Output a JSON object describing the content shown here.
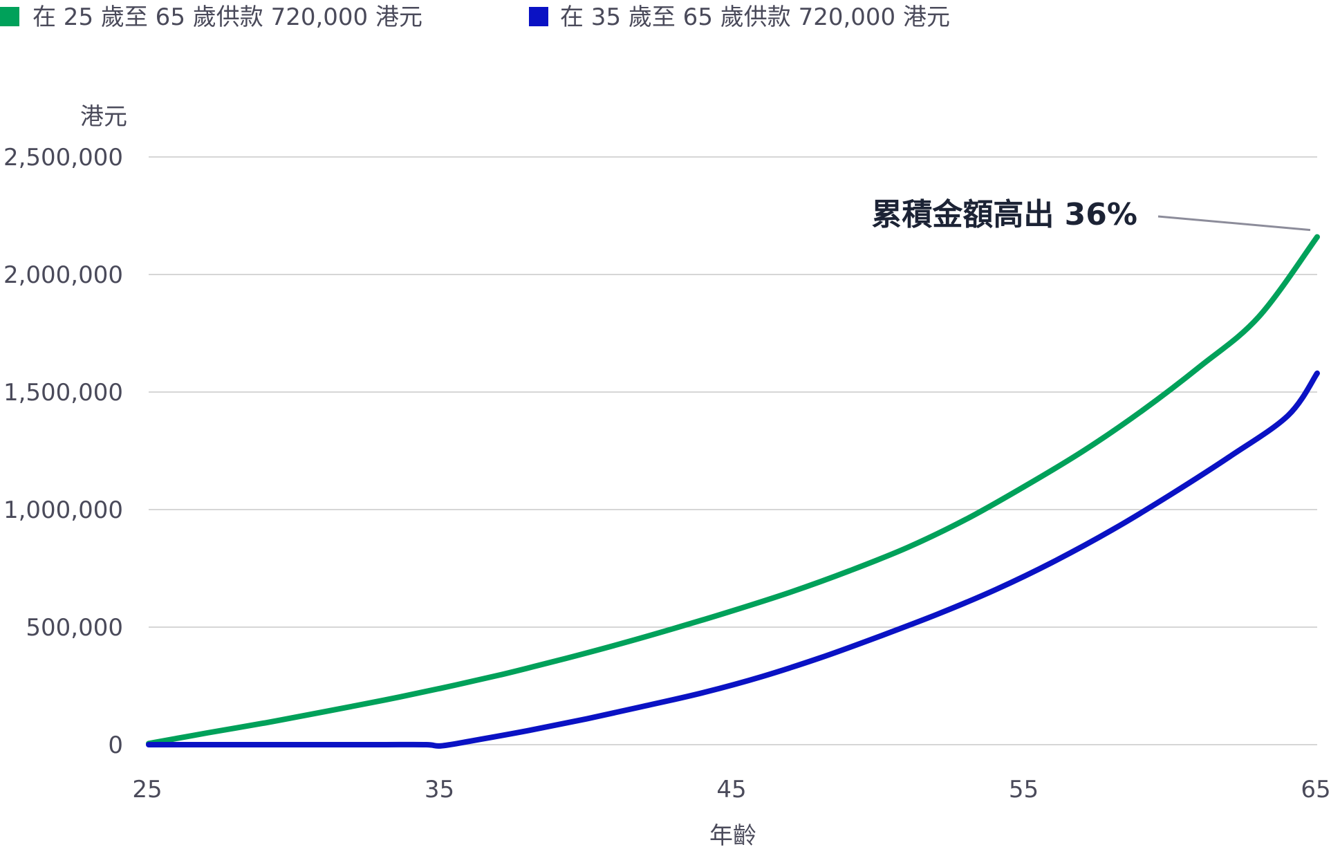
{
  "chart_data": {
    "type": "line",
    "title": "",
    "xlabel": "年齡",
    "ylabel": "港元",
    "x_ticks": [
      25,
      35,
      45,
      55,
      65
    ],
    "y_ticks": [
      0,
      500000,
      1000000,
      1500000,
      2000000,
      2500000
    ],
    "y_tick_labels": [
      "0",
      "500,000",
      "1,000,000",
      "1,500,000",
      "2,000,000",
      "2,500,000"
    ],
    "xlim": [
      25,
      65
    ],
    "ylim": [
      0,
      2500000
    ],
    "grid": "horizontal",
    "legend_position": "top-left",
    "series": [
      {
        "name": "在 25 歲至 65 歲供款 720,000 港元",
        "color": "#00A15A",
        "x": [
          25,
          27,
          29,
          31,
          33,
          35,
          37,
          39,
          41,
          43,
          45,
          47,
          49,
          51,
          53,
          55,
          57,
          59,
          61,
          63,
          65
        ],
        "y": [
          5000,
          50000,
          93000,
          140000,
          188000,
          240000,
          296000,
          358000,
          424000,
          495000,
          570000,
          650000,
          740000,
          840000,
          960000,
          1100000,
          1250000,
          1420000,
          1610000,
          1820000,
          2160000
        ]
      },
      {
        "name": "在 35 歲至 65 歲供款 720,000 港元",
        "color": "#0A12C4",
        "x": [
          25,
          27,
          29,
          31,
          33,
          34.5,
          35,
          36,
          38,
          40,
          42,
          44,
          46,
          48,
          50,
          52,
          54,
          56,
          58,
          60,
          62,
          64,
          65
        ],
        "y": [
          0,
          0,
          0,
          0,
          0,
          0,
          -5000,
          15000,
          60000,
          110000,
          165000,
          222000,
          290000,
          370000,
          460000,
          555000,
          660000,
          780000,
          915000,
          1065000,
          1225000,
          1400000,
          1580000
        ]
      }
    ],
    "annotations": [
      {
        "text": "累積金額高出 36%",
        "target_x": 65,
        "target_y": 2160000
      }
    ]
  },
  "colors": {
    "grid": "#c8c8c8",
    "axis_text": "#4a4a5a",
    "annotation_text": "#1c2335",
    "annotation_line": "#8c8c9a"
  }
}
